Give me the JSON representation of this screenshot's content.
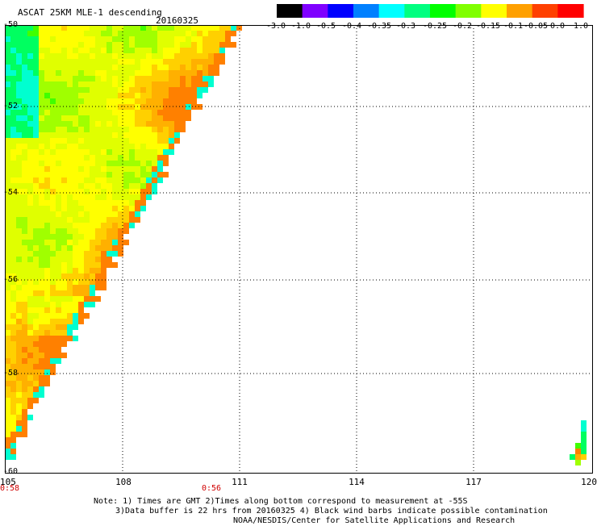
{
  "title": "ASCAT 25KM MLE-1 descending",
  "date": "20160325",
  "colorbar": {
    "labels": [
      "-3.0",
      "-1.0",
      "-0.5",
      "-0.4",
      "-0.35",
      "-0.3",
      "-0.25",
      "-0.2",
      "-0.15",
      "-0.1",
      "-0.05",
      "0.0",
      "1.0"
    ],
    "colors": [
      "#000000",
      "#7f00ff",
      "#0000ff",
      "#0080ff",
      "#00ffff",
      "#00ff80",
      "#00ff00",
      "#80ff00",
      "#ffff00",
      "#ffa000",
      "#ff4000",
      "#ff0000"
    ]
  },
  "axes": {
    "lat_labels": [
      "-50",
      "-52",
      "-54",
      "-56",
      "-58",
      "-60"
    ],
    "lon_labels": [
      "105",
      "108",
      "111",
      "114",
      "117",
      "120"
    ],
    "lat_range": [
      -60,
      -50
    ],
    "lon_range": [
      105,
      120
    ]
  },
  "time_marks": [
    "0:58",
    "0:56"
  ],
  "notes": [
    "Note: 1) Times are GMT 2)Times along bottom correspond to measurement at -55S",
    "3)Data buffer is 22 hrs from 20160325 4) Black wind barbs indicate possible contamination",
    "NOAA/NESDIS/Center for Satellite Applications and Research"
  ]
}
